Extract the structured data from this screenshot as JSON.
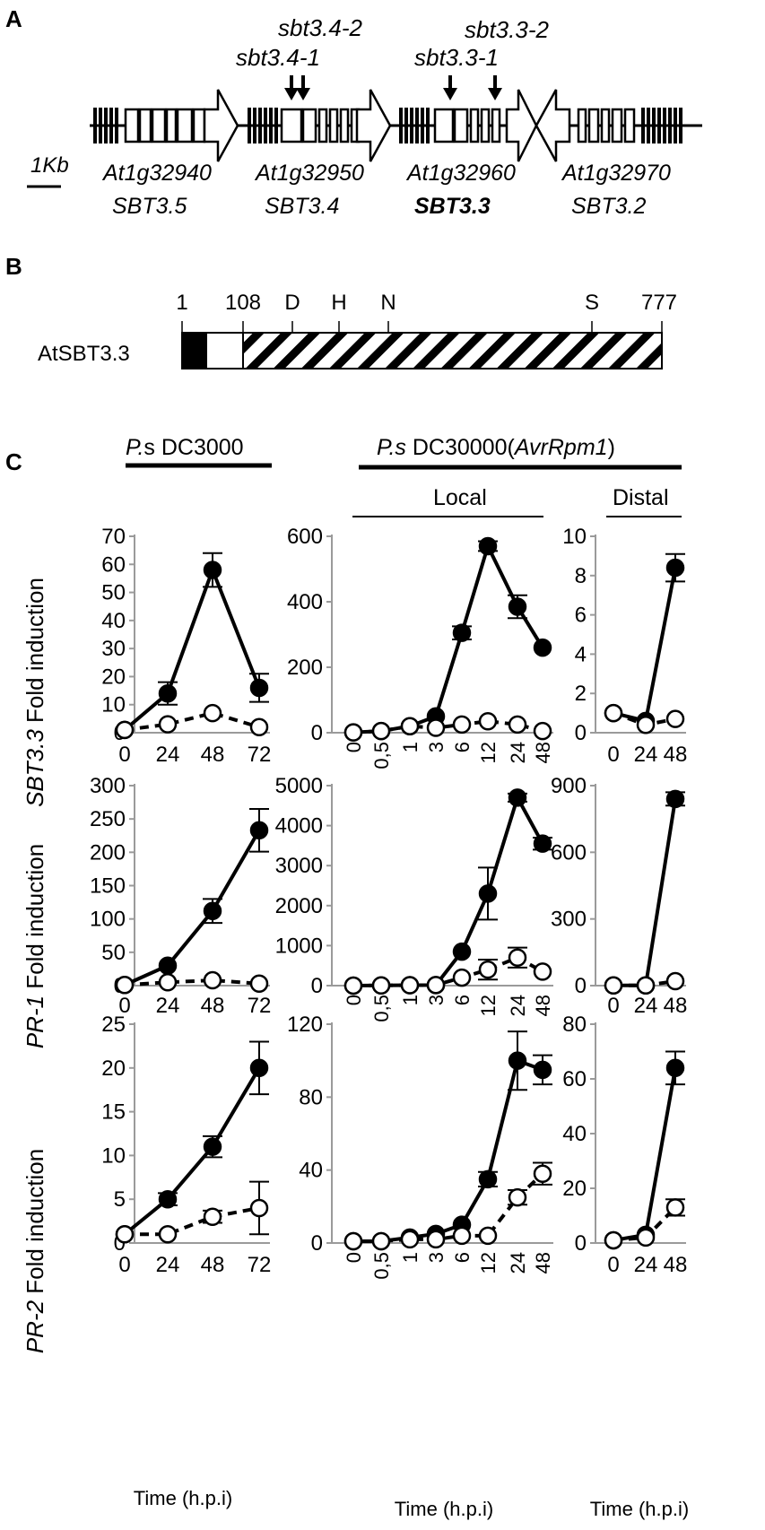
{
  "panel_a": {
    "label": "A",
    "scale_label": "1Kb",
    "mutants": [
      "sbt3.4-1",
      "sbt3.4-2",
      "sbt3.3-1",
      "sbt3.3-2"
    ],
    "genes": [
      {
        "locus": "At1g32940",
        "name": "SBT3.5"
      },
      {
        "locus": "At1g32950",
        "name": "SBT3.4"
      },
      {
        "locus": "At1g32960",
        "name": "SBT3.3"
      },
      {
        "locus": "At1g32970",
        "name": "SBT3.2"
      }
    ]
  },
  "panel_b": {
    "label": "B",
    "protein": "AtSBT3.3",
    "ticks": [
      "1",
      "108",
      "D",
      "H",
      "N",
      "S",
      "777"
    ]
  },
  "panel_c": {
    "label": "C",
    "header_left_italic": "P.",
    "header_left_rest": "s DC3000",
    "header_right_italic": "P.s",
    "header_right_rest": " DC30000(",
    "header_right_gene": "AvrRpm1",
    "header_right_close": ")",
    "local_label": "Local",
    "distal_label": "Distal",
    "row_labels": [
      {
        "gene": "SBT3.3",
        "suffix": " Fold induction"
      },
      {
        "gene": "PR-1",
        "suffix": " Fold induction"
      },
      {
        "gene": "PR-2",
        "suffix": " Fold induction"
      }
    ],
    "xlabel": "Time (h.p.i)"
  },
  "chart_data": [
    {
      "type": "line",
      "row": "SBT3.3",
      "group": "P.s DC3000",
      "x": [
        "0",
        "24",
        "48",
        "72"
      ],
      "ylim": [
        0,
        70
      ],
      "yticks": [
        "0",
        "10",
        "20",
        "30",
        "40",
        "50",
        "60",
        "70"
      ],
      "series": [
        {
          "values": [
            1,
            14,
            58,
            16
          ],
          "errors": [
            0,
            4,
            6,
            5
          ]
        },
        {
          "values": [
            1,
            3,
            7,
            2
          ],
          "errors": [
            0,
            0,
            0,
            0
          ]
        }
      ]
    },
    {
      "type": "line",
      "row": "SBT3.3",
      "group": "Local",
      "x": [
        "0",
        "0,5",
        "1",
        "3",
        "6",
        "12",
        "24",
        "48"
      ],
      "ylim": [
        0,
        600
      ],
      "yticks": [
        "0",
        "200",
        "400",
        "600"
      ],
      "series": [
        {
          "values": [
            1,
            5,
            20,
            50,
            305,
            570,
            385,
            260
          ],
          "errors": [
            0,
            0,
            0,
            0,
            20,
            15,
            35,
            0
          ]
        },
        {
          "values": [
            1,
            5,
            20,
            15,
            25,
            35,
            25,
            5
          ],
          "errors": [
            0,
            0,
            0,
            0,
            0,
            0,
            0,
            0
          ]
        }
      ]
    },
    {
      "type": "line",
      "row": "SBT3.3",
      "group": "Distal",
      "x": [
        "0",
        "24",
        "48"
      ],
      "ylim": [
        0,
        10
      ],
      "yticks": [
        "0",
        "2",
        "4",
        "6",
        "8",
        "10"
      ],
      "series": [
        {
          "values": [
            1,
            0.6,
            8.4
          ],
          "errors": [
            0,
            0,
            0.7
          ]
        },
        {
          "values": [
            1,
            0.4,
            0.7
          ],
          "errors": [
            0,
            0,
            0
          ]
        }
      ]
    },
    {
      "type": "line",
      "row": "PR-1",
      "group": "P.s DC3000",
      "x": [
        "0",
        "24",
        "48",
        "72"
      ],
      "ylim": [
        0,
        300
      ],
      "yticks": [
        "0",
        "50",
        "100",
        "150",
        "200",
        "250",
        "300"
      ],
      "series": [
        {
          "values": [
            1,
            30,
            112,
            233
          ],
          "errors": [
            0,
            0,
            18,
            32
          ]
        },
        {
          "values": [
            1,
            5,
            8,
            3
          ],
          "errors": [
            0,
            0,
            0,
            0
          ]
        }
      ]
    },
    {
      "type": "line",
      "row": "PR-1",
      "group": "Local",
      "x": [
        "0",
        "0,5",
        "1",
        "3",
        "6",
        "12",
        "24",
        "48"
      ],
      "ylim": [
        0,
        5000
      ],
      "yticks": [
        "0",
        "1000",
        "2000",
        "3000",
        "4000",
        "5000"
      ],
      "series": [
        {
          "values": [
            1,
            5,
            10,
            15,
            850,
            2300,
            4700,
            3550
          ],
          "errors": [
            0,
            0,
            0,
            0,
            0,
            650,
            100,
            150
          ]
        },
        {
          "values": [
            1,
            5,
            10,
            15,
            200,
            400,
            700,
            350
          ],
          "errors": [
            0,
            0,
            0,
            0,
            0,
            250,
            250,
            0
          ]
        }
      ]
    },
    {
      "type": "line",
      "row": "PR-1",
      "group": "Distal",
      "x": [
        "0",
        "24",
        "48"
      ],
      "ylim": [
        0,
        900
      ],
      "yticks": [
        "0",
        "300",
        "600",
        "900"
      ],
      "series": [
        {
          "values": [
            1,
            1,
            840
          ],
          "errors": [
            0,
            0,
            30
          ]
        },
        {
          "values": [
            1,
            1,
            20
          ],
          "errors": [
            0,
            0,
            0
          ]
        }
      ]
    },
    {
      "type": "line",
      "row": "PR-2",
      "group": "P.s DC3000",
      "x": [
        "0",
        "24",
        "48",
        "72"
      ],
      "ylim": [
        0,
        25
      ],
      "yticks": [
        "0",
        "5",
        "10",
        "15",
        "20",
        "25"
      ],
      "series": [
        {
          "values": [
            1,
            5,
            11,
            20
          ],
          "errors": [
            0,
            0.7,
            1.2,
            3
          ]
        },
        {
          "values": [
            1,
            1,
            3,
            4
          ],
          "errors": [
            0,
            0,
            0.7,
            3
          ]
        }
      ]
    },
    {
      "type": "line",
      "row": "PR-2",
      "group": "Local",
      "x": [
        "0",
        "0,5",
        "1",
        "3",
        "6",
        "12",
        "24",
        "48"
      ],
      "ylim": [
        0,
        120
      ],
      "yticks": [
        "0",
        "40",
        "80",
        "120"
      ],
      "series": [
        {
          "values": [
            1,
            1,
            3,
            5,
            10,
            35,
            100,
            95
          ],
          "errors": [
            0,
            0,
            0,
            0,
            0,
            4,
            16,
            8
          ]
        },
        {
          "values": [
            1,
            1,
            2,
            2,
            4,
            4,
            25,
            38
          ],
          "errors": [
            0,
            0,
            0,
            0,
            0,
            0,
            4,
            6
          ]
        }
      ]
    },
    {
      "type": "line",
      "row": "PR-2",
      "group": "Distal",
      "x": [
        "0",
        "24",
        "48"
      ],
      "ylim": [
        0,
        80
      ],
      "yticks": [
        "0",
        "20",
        "40",
        "60",
        "80"
      ],
      "series": [
        {
          "values": [
            1,
            3,
            64
          ],
          "errors": [
            0,
            0,
            6
          ]
        },
        {
          "values": [
            1,
            2,
            13
          ],
          "errors": [
            0,
            0,
            3
          ]
        }
      ]
    }
  ]
}
